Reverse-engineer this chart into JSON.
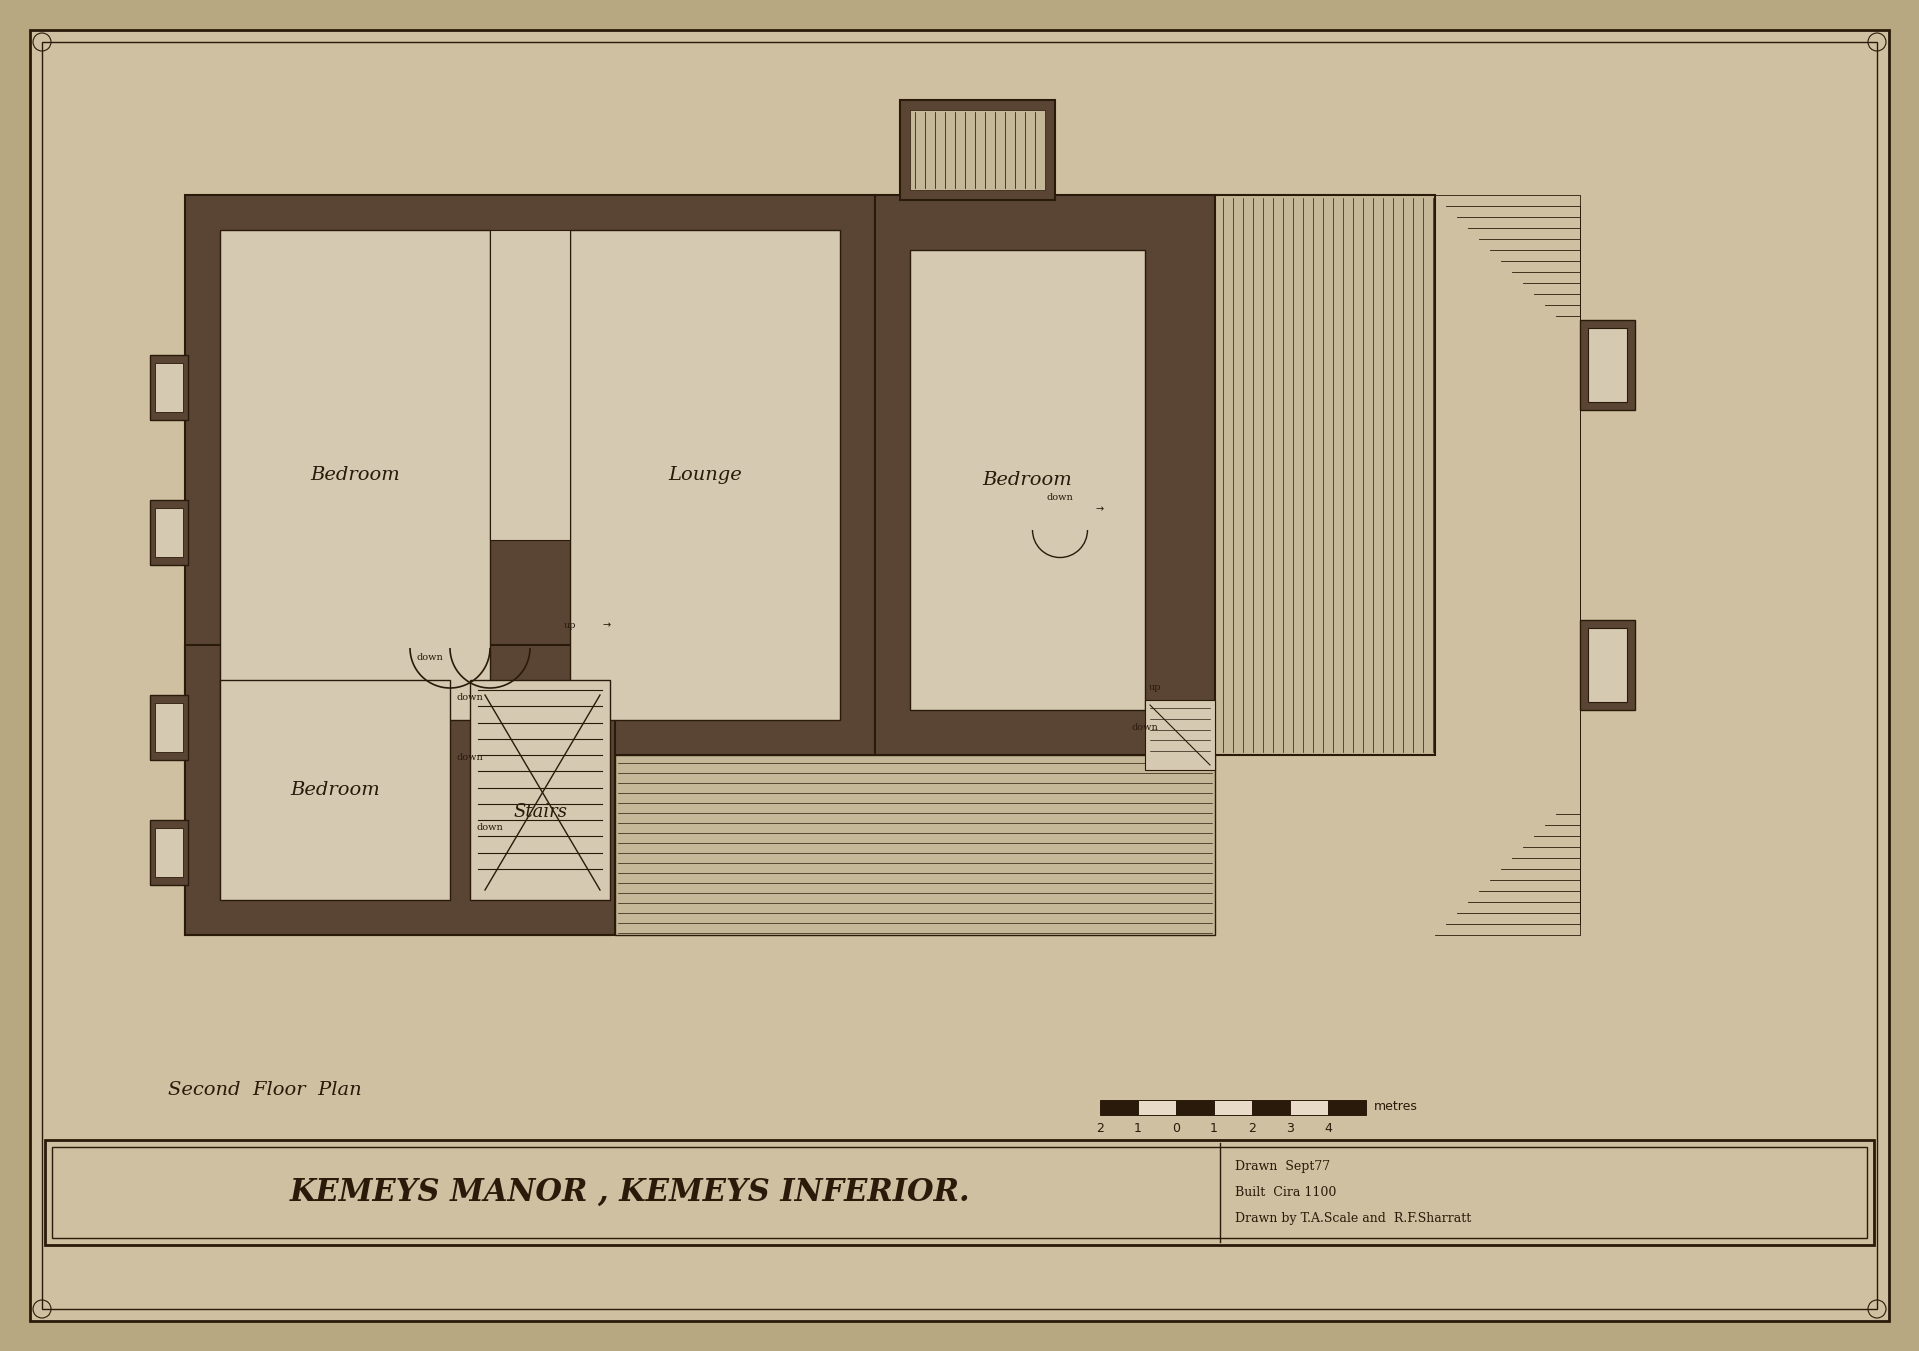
{
  "bg_color": "#b8a882",
  "paper_color": "#cec0a0",
  "wall_color": "#5a4535",
  "room_fill": "#d5c9b2",
  "hatch_fill": "#c4b898",
  "line_color": "#2a1a0a",
  "title": "KEMEYS MANOR , KEMEYS INFERIOR.",
  "subtitle": "Second  Floor  Plan",
  "drawn_by": "Drawn by T.A.Scale and  R.F.Sharratt",
  "built": "Built  Cira 1100",
  "drawn": "Drawn  Sept77",
  "scale_label": "metres",
  "scale_ticks": [
    "2",
    "1",
    "0",
    "1",
    "2",
    "3",
    "4"
  ]
}
